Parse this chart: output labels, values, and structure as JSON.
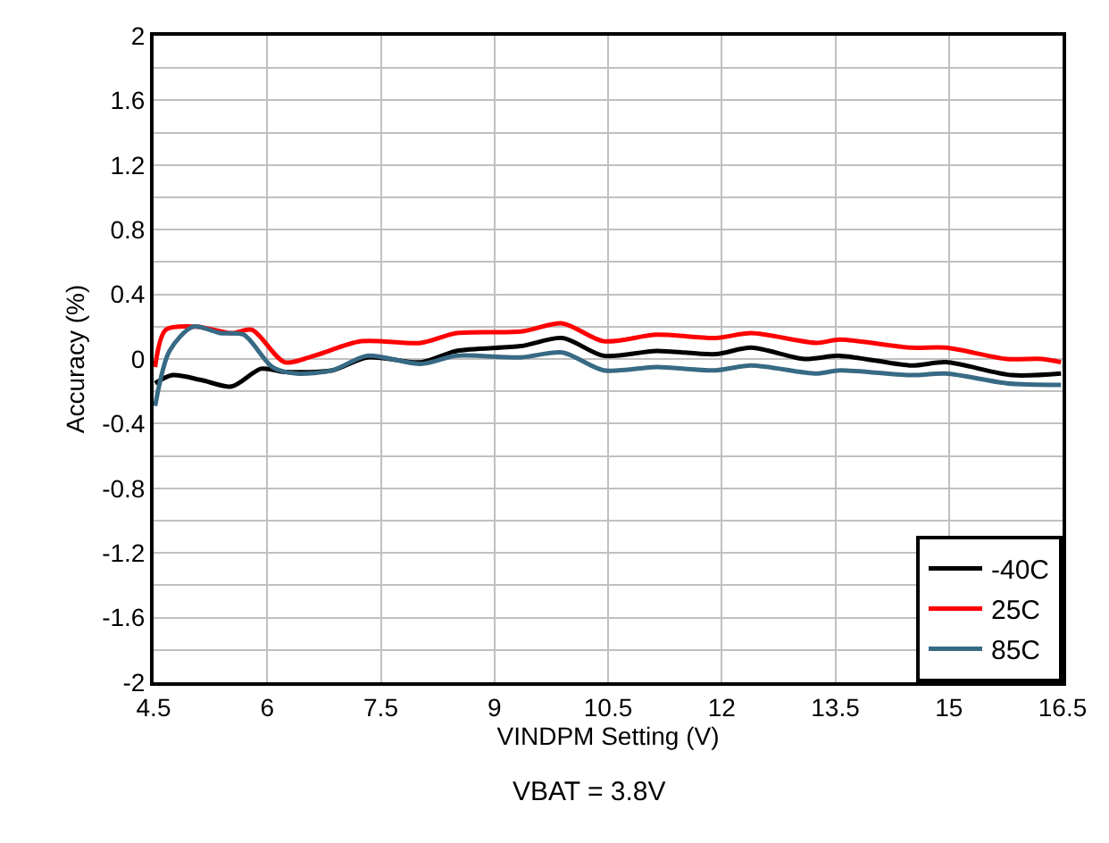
{
  "chart_data": {
    "type": "line",
    "xlabel": "VINDPM Setting (V)",
    "ylabel": "Accuracy (%)",
    "annotations": [
      "VBAT = 3.8V"
    ],
    "xlim": [
      4.5,
      16.5
    ],
    "xticks": [
      4.5,
      6,
      7.5,
      9,
      10.5,
      12,
      13.5,
      15,
      16.5
    ],
    "ylim": [
      -2,
      2
    ],
    "yticks": [
      -2,
      {
        "value": -1.8,
        "label": null
      },
      -1.6,
      {
        "value": -1.4,
        "label": null
      },
      -1.2,
      {
        "value": -1.0,
        "label": null
      },
      -0.8,
      {
        "value": -0.6,
        "label": null
      },
      -0.4,
      {
        "value": -0.2,
        "label": null
      },
      0,
      {
        "value": 0.2,
        "label": null
      },
      0.4,
      {
        "value": 0.6,
        "label": null
      },
      0.8,
      {
        "value": 1.0,
        "label": null
      },
      1.2,
      {
        "value": 1.4,
        "label": null
      },
      1.6,
      {
        "value": 1.8,
        "label": null
      },
      2
    ],
    "grid": true,
    "legend": "bottom right",
    "marker": "none",
    "line_style": "solid",
    "series": [
      {
        "name": "-40C",
        "color": "#000000",
        "x": [
          4.52,
          4.75,
          5.13,
          5.53,
          5.92,
          6.23,
          6.86,
          7.32,
          8.03,
          8.5,
          9.35,
          9.9,
          10.44,
          11.14,
          11.92,
          12.39,
          13.09,
          13.56,
          14.5,
          14.96,
          15.83,
          16.48
        ],
        "values": [
          -0.15,
          -0.1,
          -0.13,
          -0.17,
          -0.06,
          -0.08,
          -0.07,
          0.01,
          -0.02,
          0.05,
          0.08,
          0.13,
          0.02,
          0.05,
          0.03,
          0.07,
          0,
          0.02,
          -0.04,
          -0.02,
          -0.1,
          -0.09
        ]
      },
      {
        "name": "25C",
        "color": "#ff0000",
        "x": [
          4.52,
          4.66,
          5.06,
          5.53,
          5.8,
          6.23,
          6.62,
          7.24,
          8.03,
          8.5,
          9.35,
          9.9,
          10.44,
          11.14,
          11.92,
          12.39,
          13.25,
          13.56,
          14.5,
          14.96,
          15.76,
          16.23,
          16.48
        ],
        "values": [
          -0.05,
          0.18,
          0.2,
          0.16,
          0.18,
          -0.02,
          0.02,
          0.11,
          0.1,
          0.16,
          0.17,
          0.22,
          0.11,
          0.15,
          0.13,
          0.16,
          0.1,
          0.12,
          0.07,
          0.07,
          0,
          0,
          -0.02
        ]
      },
      {
        "name": "85C",
        "color": "#376a84",
        "x": [
          4.52,
          4.71,
          5.02,
          5.38,
          5.69,
          6.07,
          6.39,
          6.86,
          7.32,
          8.03,
          8.5,
          9.35,
          9.9,
          10.44,
          11.14,
          11.92,
          12.39,
          13.25,
          13.56,
          14.5,
          14.96,
          15.76,
          16.48
        ],
        "values": [
          -0.29,
          0.05,
          0.2,
          0.16,
          0.15,
          -0.05,
          -0.09,
          -0.07,
          0.02,
          -0.03,
          0.02,
          0.01,
          0.04,
          -0.07,
          -0.05,
          -0.07,
          -0.04,
          -0.09,
          -0.07,
          -0.1,
          -0.09,
          -0.15,
          -0.16
        ]
      }
    ]
  }
}
